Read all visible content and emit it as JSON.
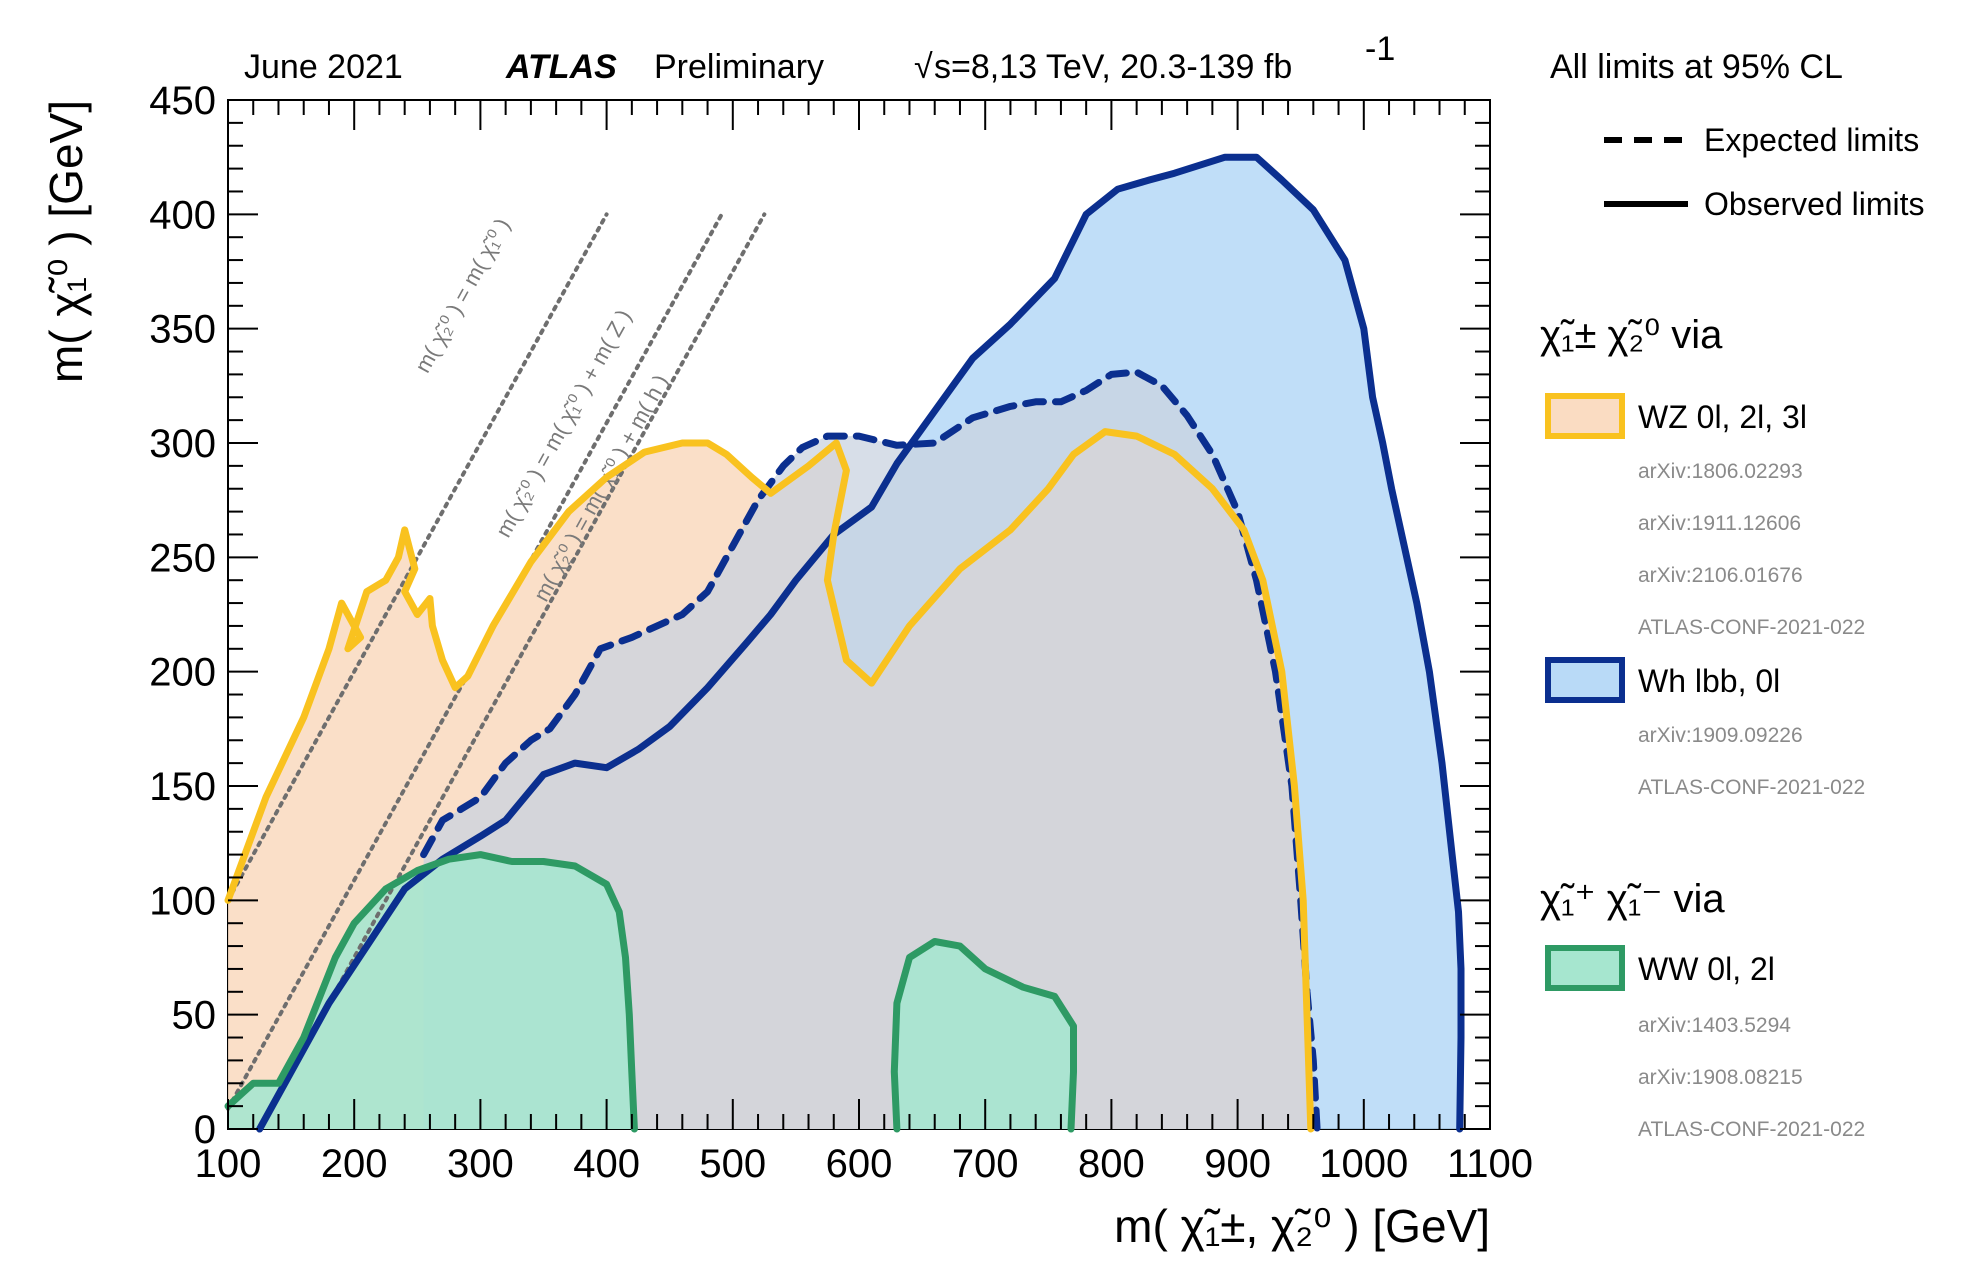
{
  "header": {
    "date": "June 2021",
    "experiment": "ATLAS",
    "status": "Preliminary",
    "sqrt_s": "s=8,13 TeV, 20.3-139 fb",
    "lumi_exp": "-1",
    "cl_note": "All limits at 95% CL"
  },
  "legend": {
    "expected_label": "Expected limits",
    "observed_label": "Observed limits",
    "groups": [
      {
        "title": "χ̃₁± χ̃₂⁰ via",
        "entries": [
          {
            "label": "WZ  0l, 2l, 3l",
            "refs": [
              "arXiv:1806.02293",
              "arXiv:1911.12606",
              "arXiv:2106.01676",
              "ATLAS-CONF-2021-022"
            ]
          },
          {
            "label": "Wh  lbb, 0l",
            "refs": [
              "arXiv:1909.09226",
              "ATLAS-CONF-2021-022"
            ]
          }
        ]
      },
      {
        "title": "χ̃₁⁺ χ̃₁⁻ via",
        "entries": [
          {
            "label": "WW  0l, 2l",
            "refs": [
              "arXiv:1403.5294",
              "arXiv:1908.08215",
              "ATLAS-CONF-2021-022"
            ]
          }
        ]
      }
    ]
  },
  "chart_data": {
    "type": "area",
    "xlabel": "m( χ̃₁±, χ̃₂⁰ ) [GeV]",
    "ylabel": "m( χ̃₁⁰ ) [GeV]",
    "xlim": [
      100,
      1100
    ],
    "ylim": [
      0,
      450
    ],
    "x_ticks": [
      100,
      200,
      300,
      400,
      500,
      600,
      700,
      800,
      900,
      1000,
      1100
    ],
    "y_ticks": [
      0,
      50,
      100,
      150,
      200,
      250,
      300,
      350,
      400,
      450
    ],
    "diagonal_labels": [
      "m( χ̃₂⁰ ) = m( χ̃₁⁰ )",
      "m( χ̃₂⁰ ) = m( χ̃₁⁰ ) + m( Z )",
      "m( χ̃₂⁰ ) = m( χ̃₁⁰ ) + m( h )"
    ],
    "colors": {
      "WZ_line": "#f9c21f",
      "WZ_fill": "#fadcc2",
      "Wh_line": "#0b2f8f",
      "Wh_fill": "#b9daf7",
      "WW_line": "#2e9a64",
      "WW_fill": "#a6e6cf",
      "overlap_fill": "#c9d3e0"
    },
    "series": [
      {
        "name": "Wh lbb, 0l (observed)",
        "style": "solid",
        "color": "#0b2f8f",
        "points": [
          [
            125,
            0
          ],
          [
            180,
            55
          ],
          [
            240,
            105
          ],
          [
            270,
            118
          ],
          [
            300,
            128
          ],
          [
            320,
            135
          ],
          [
            335,
            145
          ],
          [
            350,
            155
          ],
          [
            375,
            160
          ],
          [
            400,
            158
          ],
          [
            425,
            166
          ],
          [
            450,
            176
          ],
          [
            480,
            193
          ],
          [
            510,
            212
          ],
          [
            530,
            225
          ],
          [
            550,
            240
          ],
          [
            580,
            260
          ],
          [
            610,
            272
          ],
          [
            630,
            291
          ],
          [
            660,
            314
          ],
          [
            690,
            337
          ],
          [
            720,
            352
          ],
          [
            755,
            372
          ],
          [
            780,
            400
          ],
          [
            805,
            411
          ],
          [
            830,
            415
          ],
          [
            850,
            418
          ],
          [
            890,
            425
          ],
          [
            915,
            425
          ],
          [
            935,
            415
          ],
          [
            960,
            402
          ],
          [
            985,
            380
          ],
          [
            1000,
            350
          ],
          [
            1007,
            320
          ],
          [
            1015,
            300
          ],
          [
            1022,
            280
          ],
          [
            1032,
            255
          ],
          [
            1042,
            230
          ],
          [
            1052,
            200
          ],
          [
            1062,
            160
          ],
          [
            1070,
            120
          ],
          [
            1075,
            95
          ],
          [
            1077,
            70
          ],
          [
            1077,
            40
          ],
          [
            1076,
            0
          ]
        ]
      },
      {
        "name": "Wh lbb, 0l (expected)",
        "style": "dashed",
        "color": "#0b2f8f",
        "points": [
          [
            255,
            120
          ],
          [
            270,
            135
          ],
          [
            285,
            140
          ],
          [
            300,
            145
          ],
          [
            320,
            160
          ],
          [
            340,
            170
          ],
          [
            355,
            175
          ],
          [
            375,
            190
          ],
          [
            395,
            210
          ],
          [
            420,
            215
          ],
          [
            440,
            220
          ],
          [
            460,
            225
          ],
          [
            480,
            235
          ],
          [
            500,
            255
          ],
          [
            520,
            275
          ],
          [
            540,
            290
          ],
          [
            555,
            298
          ],
          [
            575,
            303
          ],
          [
            600,
            303
          ],
          [
            630,
            299
          ],
          [
            660,
            300
          ],
          [
            690,
            311
          ],
          [
            720,
            316
          ],
          [
            740,
            318
          ],
          [
            760,
            318
          ],
          [
            780,
            323
          ],
          [
            800,
            330
          ],
          [
            820,
            331
          ],
          [
            840,
            325
          ],
          [
            860,
            312
          ],
          [
            880,
            295
          ],
          [
            900,
            270
          ],
          [
            915,
            240
          ],
          [
            930,
            200
          ],
          [
            943,
            150
          ],
          [
            950,
            100
          ],
          [
            955,
            60
          ],
          [
            960,
            30
          ],
          [
            963,
            0
          ]
        ]
      },
      {
        "name": "WZ 0l, 2l, 3l (observed)",
        "style": "solid",
        "color": "#f9c21f",
        "points": [
          [
            100,
            100
          ],
          [
            130,
            145
          ],
          [
            160,
            180
          ],
          [
            180,
            210
          ],
          [
            190,
            230
          ],
          [
            205,
            215
          ],
          [
            195,
            210
          ],
          [
            210,
            235
          ],
          [
            225,
            240
          ],
          [
            235,
            250
          ],
          [
            240,
            262
          ],
          [
            248,
            245
          ],
          [
            240,
            235
          ],
          [
            250,
            225
          ],
          [
            260,
            232
          ],
          [
            262,
            220
          ],
          [
            270,
            205
          ],
          [
            280,
            193
          ],
          [
            290,
            198
          ],
          [
            310,
            220
          ],
          [
            340,
            248
          ],
          [
            370,
            270
          ],
          [
            400,
            285
          ],
          [
            430,
            296
          ],
          [
            460,
            300
          ],
          [
            480,
            300
          ],
          [
            495,
            295
          ],
          [
            515,
            285
          ],
          [
            530,
            278
          ],
          [
            560,
            290
          ],
          [
            582,
            300
          ],
          [
            590,
            288
          ],
          [
            580,
            260
          ],
          [
            575,
            240
          ],
          [
            590,
            205
          ],
          [
            610,
            195
          ],
          [
            640,
            220
          ],
          [
            680,
            245
          ],
          [
            720,
            262
          ],
          [
            750,
            280
          ],
          [
            770,
            295
          ],
          [
            795,
            305
          ],
          [
            820,
            303
          ],
          [
            850,
            295
          ],
          [
            880,
            280
          ],
          [
            905,
            262
          ],
          [
            920,
            240
          ],
          [
            935,
            200
          ],
          [
            945,
            150
          ],
          [
            952,
            100
          ],
          [
            955,
            50
          ],
          [
            958,
            0
          ]
        ]
      },
      {
        "name": "WW 0l, 2l (observed)",
        "style": "solid",
        "color": "#2e9a64",
        "points": [
          [
            100,
            10
          ],
          [
            120,
            20
          ],
          [
            140,
            20
          ],
          [
            160,
            40
          ],
          [
            185,
            75
          ],
          [
            200,
            90
          ],
          [
            225,
            105
          ],
          [
            250,
            113
          ],
          [
            275,
            118
          ],
          [
            300,
            120
          ],
          [
            325,
            117
          ],
          [
            350,
            117
          ],
          [
            375,
            115
          ],
          [
            400,
            107
          ],
          [
            410,
            95
          ],
          [
            415,
            75
          ],
          [
            418,
            50
          ],
          [
            420,
            25
          ],
          [
            422,
            0
          ]
        ]
      },
      {
        "name": "WW 0l, 2l (observed, high mass island)",
        "style": "solid",
        "color": "#2e9a64",
        "points": [
          [
            630,
            0
          ],
          [
            628,
            25
          ],
          [
            630,
            55
          ],
          [
            640,
            75
          ],
          [
            660,
            82
          ],
          [
            680,
            80
          ],
          [
            700,
            70
          ],
          [
            730,
            62
          ],
          [
            755,
            58
          ],
          [
            770,
            45
          ],
          [
            770,
            25
          ],
          [
            768,
            0
          ]
        ]
      }
    ]
  }
}
